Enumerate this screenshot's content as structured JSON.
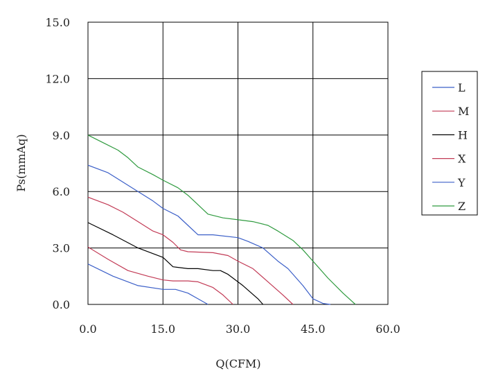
{
  "chart_data": {
    "type": "line",
    "title": "",
    "xlabel": "Q(CFM)",
    "ylabel": "Ps(mmAq)",
    "xlim": [
      0,
      60
    ],
    "ylim": [
      0,
      15
    ],
    "x_ticks": [
      "0.0",
      "15.0",
      "30.0",
      "45.0",
      "60.0"
    ],
    "y_ticks": [
      "0.0",
      "3.0",
      "6.0",
      "9.0",
      "12.0",
      "15.0"
    ],
    "grid": true,
    "legend_position": "right",
    "series": [
      {
        "name": "L",
        "color": "#3b5fc8",
        "x": [
          0,
          5,
          10,
          15,
          17.5,
          20,
          22,
          24
        ],
        "y": [
          2.15,
          1.5,
          1.0,
          0.8,
          0.8,
          0.6,
          0.3,
          0.0
        ]
      },
      {
        "name": "M",
        "color": "#c23a55",
        "x": [
          0,
          4,
          8,
          12,
          15,
          17,
          20,
          22,
          25,
          27,
          29
        ],
        "y": [
          3.05,
          2.4,
          1.8,
          1.5,
          1.3,
          1.25,
          1.25,
          1.2,
          0.9,
          0.5,
          0.0
        ]
      },
      {
        "name": "H",
        "color": "#000000",
        "x": [
          0,
          5,
          10,
          15,
          17,
          20,
          22,
          25,
          26.5,
          28,
          31,
          34,
          35
        ],
        "y": [
          4.35,
          3.7,
          3.0,
          2.5,
          2.0,
          1.9,
          1.9,
          1.8,
          1.8,
          1.6,
          1.0,
          0.3,
          0.0
        ]
      },
      {
        "name": "X",
        "color": "#c23a55",
        "x": [
          0,
          4,
          7,
          10,
          13,
          15,
          17,
          18.5,
          20,
          25,
          28,
          30,
          33,
          36,
          39,
          41
        ],
        "y": [
          5.7,
          5.3,
          4.9,
          4.4,
          3.9,
          3.7,
          3.3,
          2.9,
          2.8,
          2.75,
          2.6,
          2.3,
          1.9,
          1.2,
          0.5,
          0.0
        ]
      },
      {
        "name": "Y",
        "color": "#3b5fc8",
        "x": [
          0,
          4,
          7,
          10,
          13,
          15,
          18,
          20,
          22,
          25,
          30,
          32,
          35,
          38,
          40,
          43,
          45,
          47,
          48.5
        ],
        "y": [
          7.4,
          7.0,
          6.5,
          6.0,
          5.5,
          5.1,
          4.7,
          4.2,
          3.7,
          3.7,
          3.55,
          3.35,
          3.0,
          2.3,
          1.9,
          1.0,
          0.3,
          0.05,
          0.0
        ]
      },
      {
        "name": "Z",
        "color": "#2e9a3e",
        "x": [
          0,
          3,
          6,
          8,
          10,
          13,
          15,
          18,
          20,
          22,
          24,
          27,
          30,
          33,
          36,
          38,
          41,
          43,
          45,
          48,
          51,
          53.5
        ],
        "y": [
          9.0,
          8.6,
          8.2,
          7.8,
          7.3,
          6.9,
          6.6,
          6.2,
          5.8,
          5.3,
          4.8,
          4.6,
          4.5,
          4.4,
          4.2,
          3.9,
          3.4,
          2.9,
          2.3,
          1.4,
          0.6,
          0.0
        ]
      }
    ]
  }
}
